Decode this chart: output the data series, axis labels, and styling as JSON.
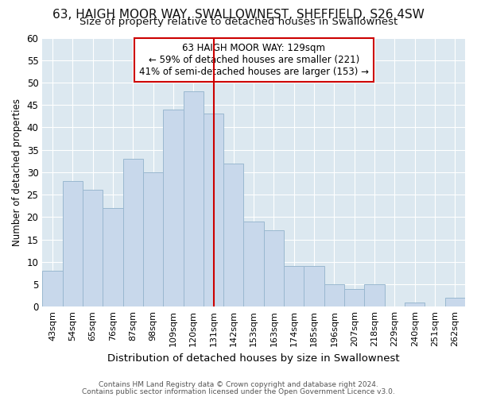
{
  "title": "63, HAIGH MOOR WAY, SWALLOWNEST, SHEFFIELD, S26 4SW",
  "subtitle": "Size of property relative to detached houses in Swallownest",
  "xlabel": "Distribution of detached houses by size in Swallownest",
  "ylabel": "Number of detached properties",
  "categories": [
    "43sqm",
    "54sqm",
    "65sqm",
    "76sqm",
    "87sqm",
    "98sqm",
    "109sqm",
    "120sqm",
    "131sqm",
    "142sqm",
    "153sqm",
    "163sqm",
    "174sqm",
    "185sqm",
    "196sqm",
    "207sqm",
    "218sqm",
    "229sqm",
    "240sqm",
    "251sqm",
    "262sqm"
  ],
  "values": [
    8,
    28,
    26,
    22,
    33,
    30,
    44,
    48,
    43,
    32,
    19,
    17,
    9,
    9,
    5,
    4,
    5,
    0,
    1,
    0,
    2
  ],
  "bar_color": "#c8d8eb",
  "bar_edge_color": "#9ab8d0",
  "vline_x_index": 8,
  "vline_color": "#cc0000",
  "annotation_title": "63 HAIGH MOOR WAY: 129sqm",
  "annotation_line1": "← 59% of detached houses are smaller (221)",
  "annotation_line2": "41% of semi-detached houses are larger (153) →",
  "annotation_box_facecolor": "#ffffff",
  "annotation_box_edgecolor": "#cc0000",
  "ylim": [
    0,
    60
  ],
  "yticks": [
    0,
    5,
    10,
    15,
    20,
    25,
    30,
    35,
    40,
    45,
    50,
    55,
    60
  ],
  "footer1": "Contains HM Land Registry data © Crown copyright and database right 2024.",
  "footer2": "Contains public sector information licensed under the Open Government Licence v3.0.",
  "fig_bg_color": "#ffffff",
  "plot_bg_color": "#dce8f0",
  "grid_color": "#ffffff",
  "title_fontsize": 11,
  "subtitle_fontsize": 9.5
}
